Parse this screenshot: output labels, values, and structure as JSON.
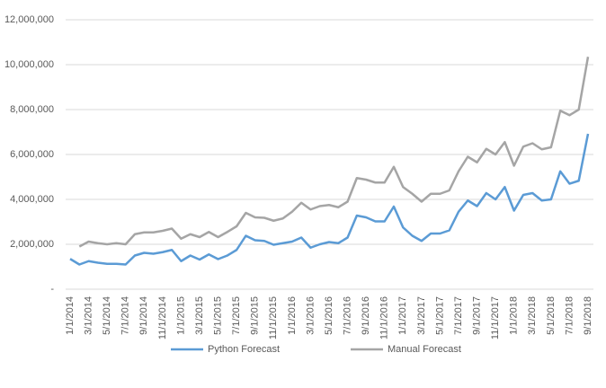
{
  "chart_data": {
    "type": "line",
    "categories": [
      "1/1/2014",
      null,
      "3/1/2014",
      null,
      "5/1/2014",
      null,
      "7/1/2014",
      null,
      "9/1/2014",
      null,
      "11/1/2014",
      null,
      "1/1/2015",
      null,
      "3/1/2015",
      null,
      "5/1/2015",
      null,
      "7/1/2015",
      null,
      "9/1/2015",
      null,
      "11/1/2015",
      null,
      "1/1/2016",
      null,
      "3/1/2016",
      null,
      "5/1/2016",
      null,
      "7/1/2016",
      null,
      "9/1/2016",
      null,
      "11/1/2016",
      null,
      "1/1/2017",
      null,
      "3/1/2017",
      null,
      "5/1/2017",
      null,
      "7/1/2017",
      null,
      "9/1/2017",
      null,
      "11/1/2017",
      null,
      "1/1/2018",
      null,
      "3/1/2018",
      null,
      "5/1/2018",
      null,
      "7/1/2018",
      null,
      "9/1/2018"
    ],
    "series": [
      {
        "name": "Python Forecast",
        "color": "#5b9bd5",
        "values": [
          1350000,
          1100000,
          1250000,
          1180000,
          1130000,
          1130000,
          1100000,
          1500000,
          1620000,
          1580000,
          1650000,
          1750000,
          1250000,
          1500000,
          1320000,
          1550000,
          1340000,
          1500000,
          1750000,
          2380000,
          2180000,
          2150000,
          1980000,
          2050000,
          2120000,
          2300000,
          1850000,
          2000000,
          2100000,
          2050000,
          2300000,
          3280000,
          3200000,
          3020000,
          3020000,
          3680000,
          2750000,
          2380000,
          2150000,
          2480000,
          2480000,
          2620000,
          3450000,
          3950000,
          3700000,
          4280000,
          4000000,
          4550000,
          3500000,
          4200000,
          4280000,
          3950000,
          4000000,
          5250000,
          4700000,
          4830000,
          6920000
        ]
      },
      {
        "name": "Manual Forecast",
        "color": "#a5a5a5",
        "values": [
          null,
          1900000,
          2120000,
          2050000,
          2000000,
          2050000,
          2000000,
          2450000,
          2530000,
          2530000,
          2600000,
          2700000,
          2250000,
          2450000,
          2320000,
          2550000,
          2320000,
          2550000,
          2800000,
          3400000,
          3200000,
          3180000,
          3050000,
          3150000,
          3450000,
          3850000,
          3550000,
          3700000,
          3750000,
          3650000,
          3900000,
          4950000,
          4880000,
          4750000,
          4750000,
          5450000,
          4550000,
          4250000,
          3900000,
          4250000,
          4250000,
          4400000,
          5250000,
          5900000,
          5650000,
          6250000,
          6000000,
          6550000,
          5500000,
          6350000,
          6500000,
          6230000,
          6320000,
          7950000,
          7750000,
          8000000,
          10350000
        ]
      }
    ],
    "ylim": [
      0,
      12000000
    ],
    "yticks": [
      {
        "value": 0,
        "label": "-"
      },
      {
        "value": 2000000,
        "label": "2,000,000"
      },
      {
        "value": 4000000,
        "label": "4,000,000"
      },
      {
        "value": 6000000,
        "label": "6,000,000"
      },
      {
        "value": 8000000,
        "label": "8,000,000"
      },
      {
        "value": 10000000,
        "label": "10,000,000"
      },
      {
        "value": 12000000,
        "label": "12,000,000"
      }
    ],
    "grid": true,
    "legend": "bottom"
  }
}
